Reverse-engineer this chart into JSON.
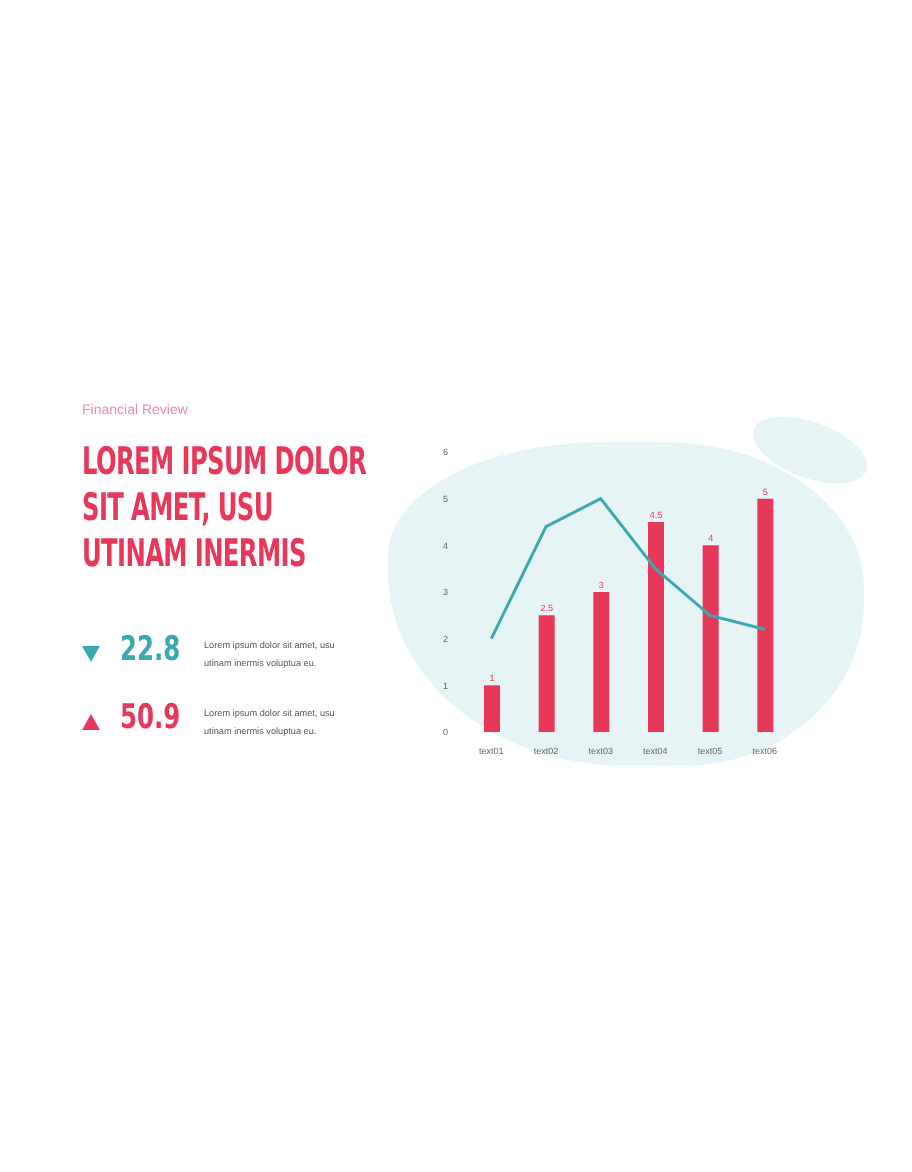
{
  "chart_data": {
    "type": "bar",
    "subtitle": "Financial Review",
    "title": "LOREM IPSUM DOLOR SIT AMET, USU UTINAM INERMIS",
    "categories": [
      "text01",
      "text02",
      "text03",
      "text04",
      "text05",
      "text06"
    ],
    "series": [
      {
        "color": "#e8385a",
        "values": [
          1,
          2.5,
          3,
          4.5,
          4,
          5
        ],
        "value_labels": [
          "1",
          "2.5",
          "3",
          "4.5",
          "4",
          "5"
        ]
      },
      {
        "type": "line",
        "color": "#3aa9b0",
        "values": [
          2.0,
          4.4,
          5.0,
          3.5,
          2.5,
          2.2
        ]
      }
    ],
    "ylim": [
      0,
      6
    ],
    "yticks": [
      0,
      1,
      2,
      3,
      4,
      5,
      6
    ],
    "grid": false,
    "legend": false,
    "marker": "none",
    "line_style": "solid",
    "annotations": [
      "22.8",
      "Lorem ipsum dolor sit amet, usu utinam inermis voluptua eu.",
      "50.9",
      "Lorem ipsum dolor sit amet, usu utinam inermis voluptua eu."
    ]
  }
}
